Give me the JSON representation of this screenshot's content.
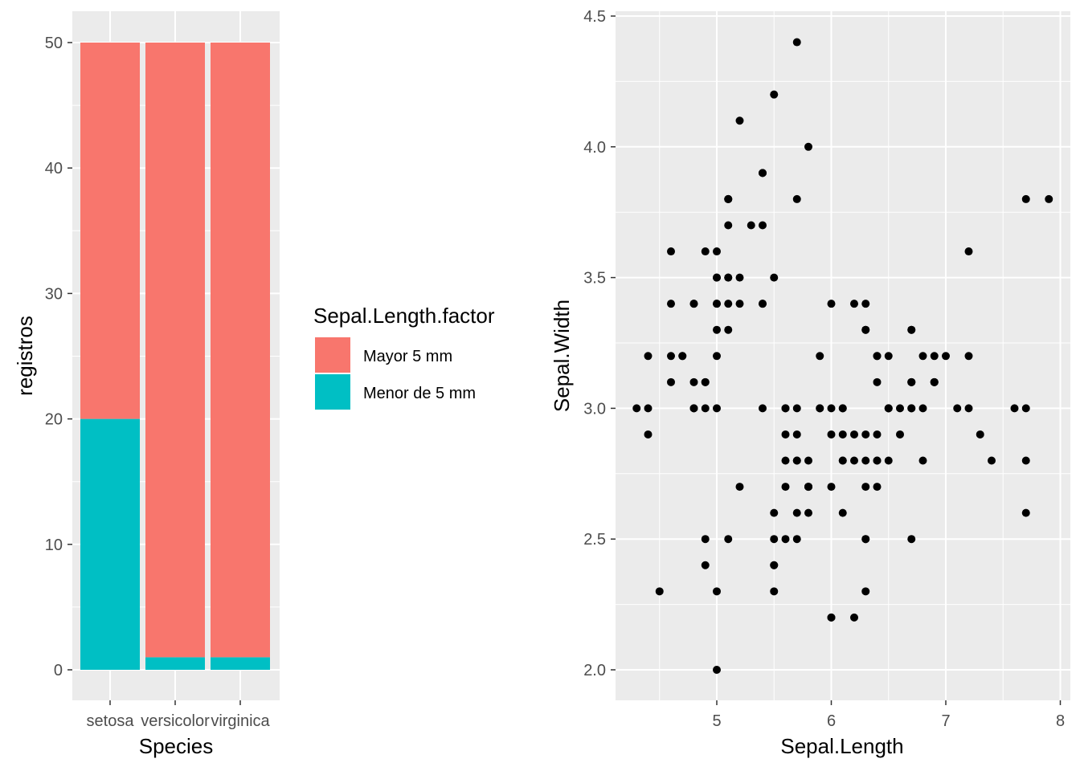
{
  "colors": {
    "panel_bg": "#EBEBEB",
    "grid": "#FFFFFF",
    "mayor": "#F8766D",
    "menor": "#00BFC4",
    "point": "#000000",
    "tick": "#4D4D4D"
  },
  "chart_data": [
    {
      "type": "bar",
      "stacked": true,
      "xlabel": "Species",
      "ylabel": "registros",
      "categories": [
        "setosa",
        "versicolor",
        "virginica"
      ],
      "ylim": [
        0,
        52.5
      ],
      "yticks": [
        0,
        10,
        20,
        30,
        40,
        50
      ],
      "grid": true,
      "legend": {
        "title": "Sepal.Length.factor",
        "placement": "right",
        "entries": [
          "Mayor 5 mm",
          "Menor de 5 mm"
        ]
      },
      "series": [
        {
          "name": "Mayor 5 mm",
          "values": [
            30,
            49,
            49
          ]
        },
        {
          "name": "Menor de 5 mm",
          "values": [
            20,
            1,
            1
          ]
        }
      ]
    },
    {
      "type": "scatter",
      "xlabel": "Sepal.Length",
      "ylabel": "Sepal.Width",
      "xlim": [
        4.12,
        8.08
      ],
      "ylim": [
        1.88,
        4.52
      ],
      "xticks": [
        5,
        6,
        7,
        8
      ],
      "yticks": [
        "2.0",
        "2.5",
        "3.0",
        "3.5",
        "4.0",
        "4.5"
      ],
      "grid": true,
      "points": [
        [
          5.1,
          3.5
        ],
        [
          4.9,
          3.0
        ],
        [
          4.7,
          3.2
        ],
        [
          4.6,
          3.1
        ],
        [
          5.0,
          3.6
        ],
        [
          5.4,
          3.9
        ],
        [
          4.6,
          3.4
        ],
        [
          5.0,
          3.4
        ],
        [
          4.4,
          2.9
        ],
        [
          4.9,
          3.1
        ],
        [
          5.4,
          3.7
        ],
        [
          4.8,
          3.4
        ],
        [
          4.8,
          3.0
        ],
        [
          4.3,
          3.0
        ],
        [
          5.8,
          4.0
        ],
        [
          5.7,
          4.4
        ],
        [
          5.4,
          3.9
        ],
        [
          5.1,
          3.5
        ],
        [
          5.7,
          3.8
        ],
        [
          5.1,
          3.8
        ],
        [
          5.4,
          3.4
        ],
        [
          5.1,
          3.7
        ],
        [
          4.6,
          3.6
        ],
        [
          5.1,
          3.3
        ],
        [
          4.8,
          3.4
        ],
        [
          5.0,
          3.0
        ],
        [
          5.0,
          3.4
        ],
        [
          5.2,
          3.5
        ],
        [
          5.2,
          3.4
        ],
        [
          4.7,
          3.2
        ],
        [
          4.8,
          3.1
        ],
        [
          5.4,
          3.4
        ],
        [
          5.2,
          4.1
        ],
        [
          5.5,
          4.2
        ],
        [
          4.9,
          3.1
        ],
        [
          5.0,
          3.2
        ],
        [
          5.5,
          3.5
        ],
        [
          4.9,
          3.6
        ],
        [
          4.4,
          3.0
        ],
        [
          5.1,
          3.4
        ],
        [
          5.0,
          3.5
        ],
        [
          4.5,
          2.3
        ],
        [
          4.4,
          3.2
        ],
        [
          5.0,
          3.5
        ],
        [
          5.1,
          3.8
        ],
        [
          4.8,
          3.0
        ],
        [
          5.1,
          3.8
        ],
        [
          4.6,
          3.2
        ],
        [
          5.3,
          3.7
        ],
        [
          5.0,
          3.3
        ],
        [
          7.0,
          3.2
        ],
        [
          6.4,
          3.2
        ],
        [
          6.9,
          3.1
        ],
        [
          5.5,
          2.3
        ],
        [
          6.5,
          2.8
        ],
        [
          5.7,
          2.8
        ],
        [
          6.3,
          3.3
        ],
        [
          4.9,
          2.4
        ],
        [
          6.6,
          2.9
        ],
        [
          5.2,
          2.7
        ],
        [
          5.0,
          2.0
        ],
        [
          5.9,
          3.0
        ],
        [
          6.0,
          2.2
        ],
        [
          6.1,
          2.9
        ],
        [
          5.6,
          2.9
        ],
        [
          6.7,
          3.1
        ],
        [
          5.6,
          3.0
        ],
        [
          5.8,
          2.7
        ],
        [
          6.2,
          2.2
        ],
        [
          5.6,
          2.5
        ],
        [
          5.9,
          3.2
        ],
        [
          6.1,
          2.8
        ],
        [
          6.3,
          2.5
        ],
        [
          6.1,
          2.8
        ],
        [
          6.4,
          2.9
        ],
        [
          6.6,
          3.0
        ],
        [
          6.8,
          2.8
        ],
        [
          6.7,
          3.0
        ],
        [
          6.0,
          2.9
        ],
        [
          5.7,
          2.6
        ],
        [
          5.5,
          2.4
        ],
        [
          5.5,
          2.4
        ],
        [
          5.8,
          2.7
        ],
        [
          6.0,
          2.7
        ],
        [
          5.4,
          3.0
        ],
        [
          6.0,
          3.4
        ],
        [
          6.7,
          3.1
        ],
        [
          6.3,
          2.3
        ],
        [
          5.6,
          3.0
        ],
        [
          5.5,
          2.5
        ],
        [
          5.5,
          2.6
        ],
        [
          6.1,
          3.0
        ],
        [
          5.8,
          2.6
        ],
        [
          5.0,
          2.3
        ],
        [
          5.6,
          2.7
        ],
        [
          5.7,
          3.0
        ],
        [
          5.7,
          2.9
        ],
        [
          6.2,
          2.9
        ],
        [
          5.1,
          2.5
        ],
        [
          5.7,
          2.8
        ],
        [
          6.3,
          3.3
        ],
        [
          5.8,
          2.7
        ],
        [
          7.1,
          3.0
        ],
        [
          6.3,
          2.9
        ],
        [
          6.5,
          3.0
        ],
        [
          7.6,
          3.0
        ],
        [
          4.9,
          2.5
        ],
        [
          7.3,
          2.9
        ],
        [
          6.7,
          2.5
        ],
        [
          7.2,
          3.6
        ],
        [
          6.5,
          3.2
        ],
        [
          6.4,
          2.7
        ],
        [
          6.8,
          3.0
        ],
        [
          5.7,
          2.5
        ],
        [
          5.8,
          2.8
        ],
        [
          6.4,
          3.2
        ],
        [
          6.5,
          3.0
        ],
        [
          7.7,
          3.8
        ],
        [
          7.7,
          2.6
        ],
        [
          6.0,
          2.2
        ],
        [
          6.9,
          3.2
        ],
        [
          5.6,
          2.8
        ],
        [
          7.7,
          2.8
        ],
        [
          6.3,
          2.7
        ],
        [
          6.7,
          3.3
        ],
        [
          7.2,
          3.2
        ],
        [
          6.2,
          2.8
        ],
        [
          6.1,
          3.0
        ],
        [
          6.4,
          2.8
        ],
        [
          7.2,
          3.0
        ],
        [
          7.4,
          2.8
        ],
        [
          7.9,
          3.8
        ],
        [
          6.4,
          2.8
        ],
        [
          6.3,
          2.8
        ],
        [
          6.1,
          2.6
        ],
        [
          7.7,
          3.0
        ],
        [
          6.3,
          3.4
        ],
        [
          6.4,
          3.1
        ],
        [
          6.0,
          3.0
        ],
        [
          6.9,
          3.1
        ],
        [
          6.7,
          3.1
        ],
        [
          6.9,
          3.1
        ],
        [
          5.8,
          2.7
        ],
        [
          6.8,
          3.2
        ],
        [
          6.7,
          3.3
        ],
        [
          6.7,
          3.0
        ],
        [
          6.3,
          2.5
        ],
        [
          6.5,
          3.0
        ],
        [
          6.2,
          3.4
        ],
        [
          5.9,
          3.0
        ]
      ]
    }
  ]
}
